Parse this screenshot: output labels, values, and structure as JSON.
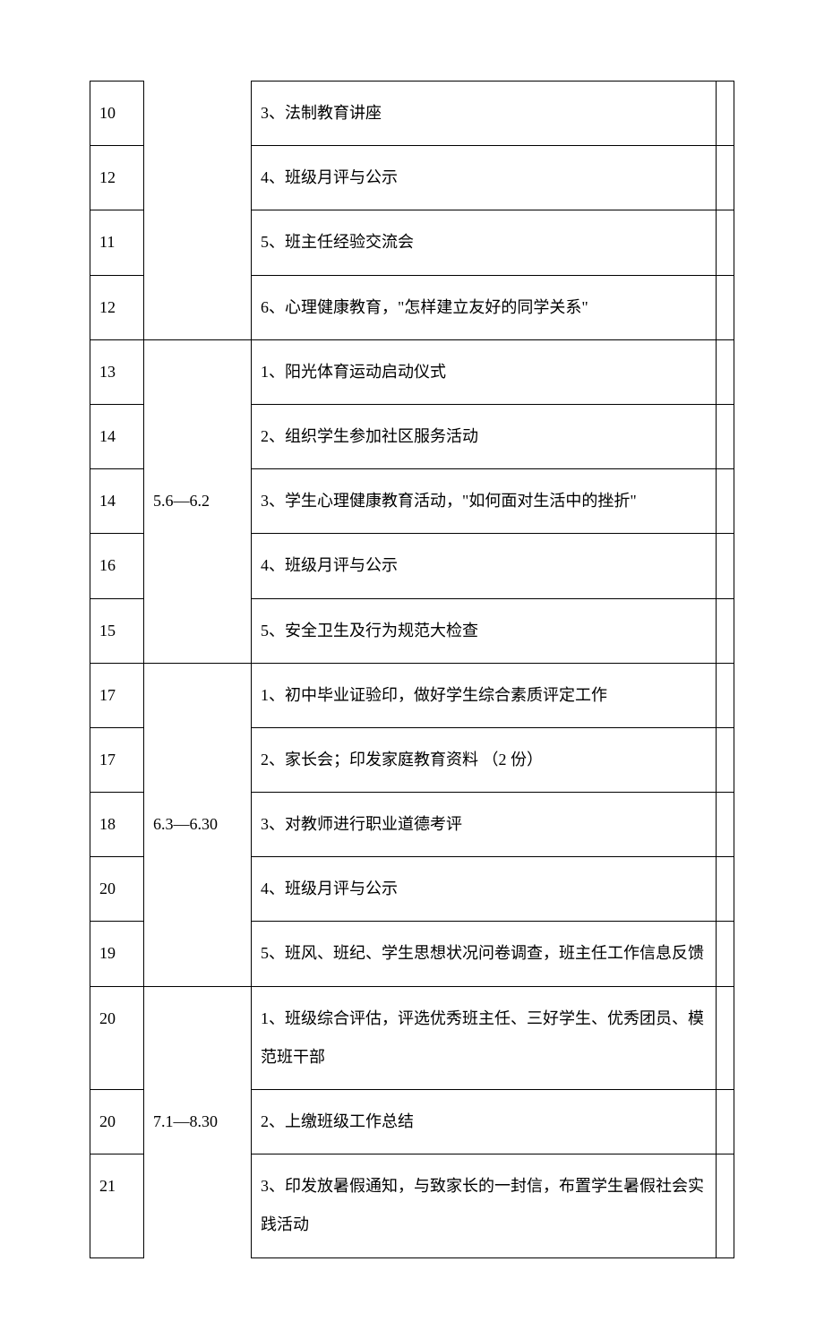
{
  "table": {
    "rows": [
      {
        "seq": "10",
        "date": "",
        "date_rowspan": 4,
        "date_open_top": true,
        "content": "3、法制教育讲座",
        "extra": ""
      },
      {
        "seq": "12",
        "content": "4、班级月评与公示",
        "extra": ""
      },
      {
        "seq": "11",
        "content": "5、班主任经验交流会",
        "extra": ""
      },
      {
        "seq": "12",
        "content": "6、心理健康教育，\"怎样建立友好的同学关系\"",
        "extra": ""
      },
      {
        "seq": "13",
        "date": "5.6—6.2",
        "date_rowspan": 5,
        "content": "1、阳光体育运动启动仪式",
        "extra": ""
      },
      {
        "seq": "14",
        "content": "2、组织学生参加社区服务活动",
        "extra": ""
      },
      {
        "seq": "14",
        "content": "3、学生心理健康教育活动，\"如何面对生活中的挫折\"",
        "extra": ""
      },
      {
        "seq": "16",
        "content": "4、班级月评与公示",
        "extra": ""
      },
      {
        "seq": "15",
        "content": "5、安全卫生及行为规范大检查",
        "extra": ""
      },
      {
        "seq": "17",
        "date": "6.3—6.30",
        "date_rowspan": 5,
        "content": "1、初中毕业证验印，做好学生综合素质评定工作",
        "extra": ""
      },
      {
        "seq": "17",
        "content": "2、家长会；印发家庭教育资料    （2 份）",
        "extra": ""
      },
      {
        "seq": "18",
        "content": "3、对教师进行职业道德考评",
        "extra": ""
      },
      {
        "seq": "20",
        "content": "4、班级月评与公示",
        "extra": ""
      },
      {
        "seq": "19",
        "content": "5、班风、班纪、学生思想状况问卷调查，班主任工作信息反馈",
        "extra": ""
      },
      {
        "seq": "20",
        "date": "7.1—8.30",
        "date_rowspan": 3,
        "date_open_bottom": true,
        "content": "1、班级综合评估，评选优秀班主任、三好学生、优秀团员、模范班干部",
        "extra": ""
      },
      {
        "seq": "20",
        "content": "2、上缴班级工作总结",
        "extra": ""
      },
      {
        "seq": "21",
        "content": "3、印发放暑假通知，与致家长的一封信，布置学生暑假社会实践活动",
        "extra": ""
      }
    ],
    "columns": {
      "seq_width": 60,
      "date_width": 120,
      "extra_width": 20
    },
    "styling": {
      "font_family": "SimSun",
      "font_size": 18,
      "text_color": "#000000",
      "border_color": "#000000",
      "background_color": "#ffffff",
      "line_height": 2.4,
      "cell_padding": 14
    }
  }
}
